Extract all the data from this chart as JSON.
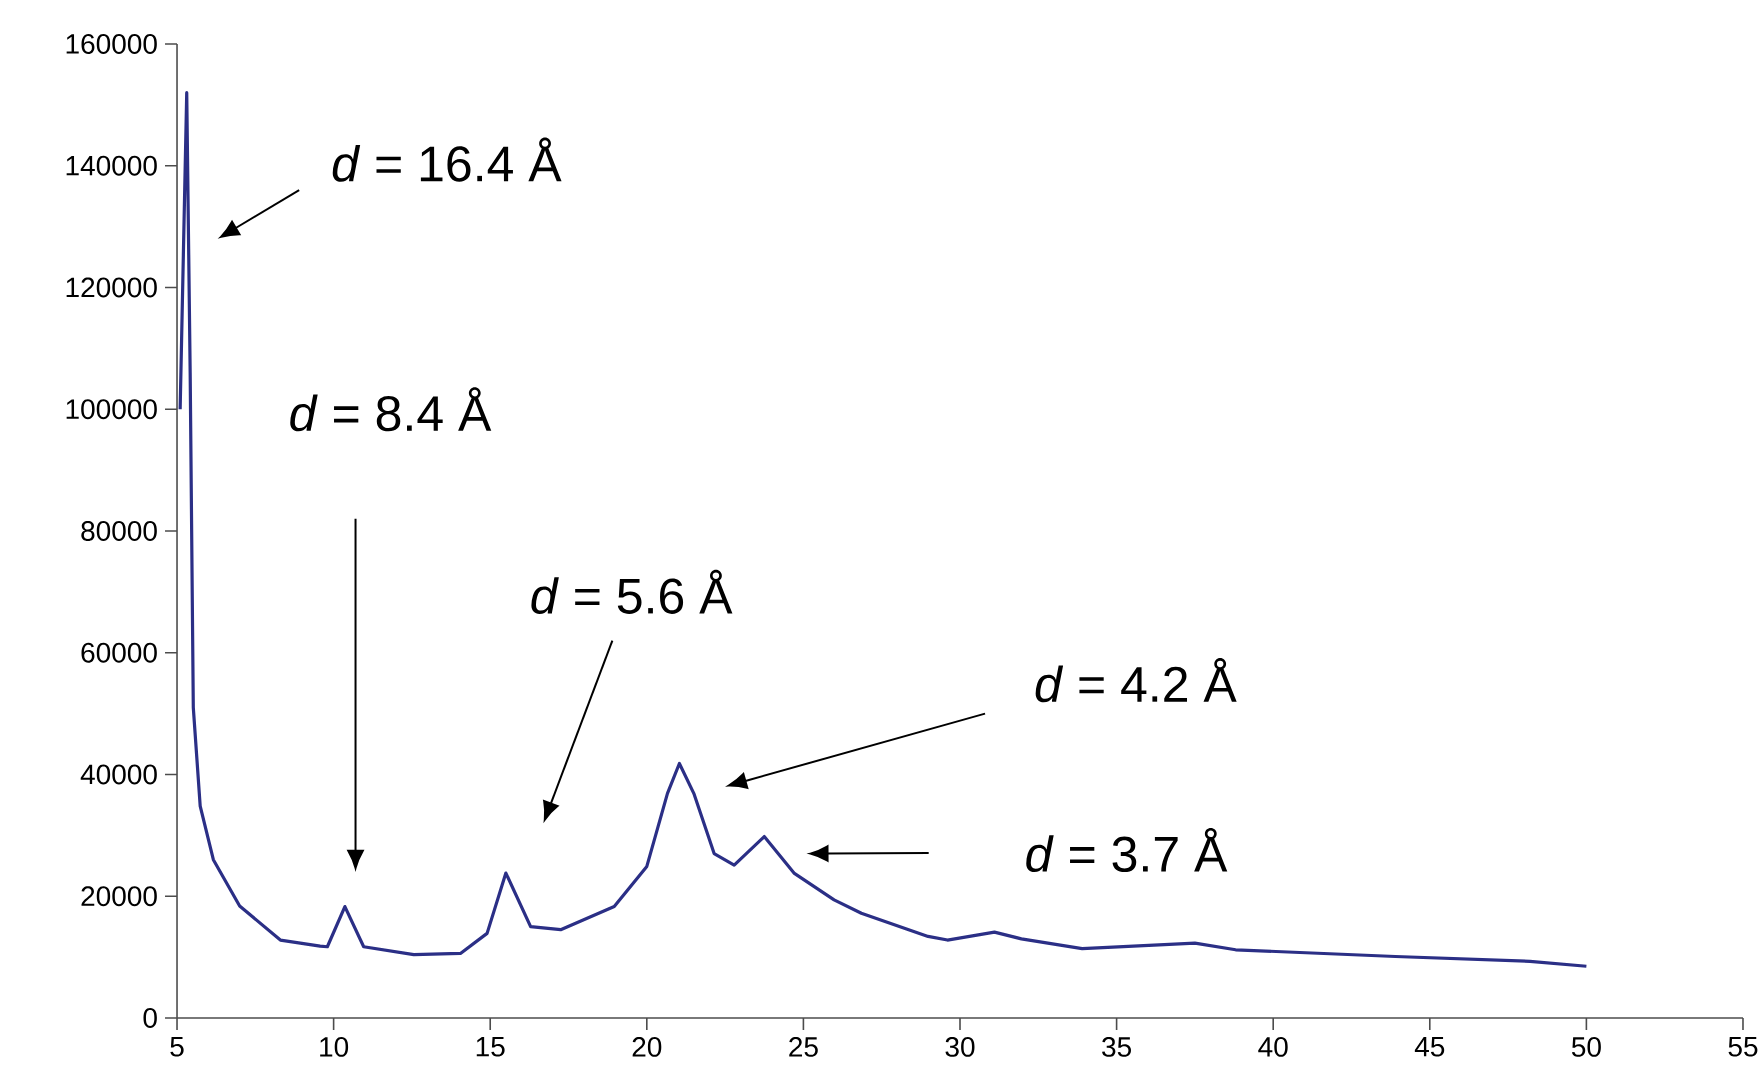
{
  "chart_data": {
    "type": "line",
    "xlim": [
      5,
      55
    ],
    "ylim": [
      0,
      160000
    ],
    "xticks": [
      5,
      10,
      15,
      20,
      25,
      30,
      35,
      40,
      45,
      50,
      55
    ],
    "yticks": [
      0,
      20000,
      40000,
      60000,
      80000,
      100000,
      120000,
      140000,
      160000
    ],
    "grid": false,
    "marker": "none",
    "line_style": "solid",
    "series": [
      {
        "color": "#2b2f86",
        "x": [
          5.1,
          5.31,
          5.42,
          5.52,
          5.74,
          6.16,
          7.0,
          8.3,
          9.57,
          9.8,
          10.36,
          10.96,
          12.56,
          14.05,
          14.9,
          15.5,
          16.29,
          17.25,
          18.96,
          20.0,
          20.66,
          21.04,
          21.5,
          22.15,
          22.79,
          23.75,
          24.7,
          25.98,
          26.85,
          28.98,
          29.6,
          31.1,
          31.96,
          33.9,
          37.5,
          38.8,
          43.9,
          48.2,
          50.0
        ],
        "values": [
          100000,
          152000,
          106000,
          51000,
          34800,
          26000,
          18400,
          12800,
          11800,
          11700,
          18300,
          11700,
          10400,
          10600,
          13900,
          23800,
          15000,
          14500,
          18300,
          24900,
          36900,
          41800,
          36900,
          27000,
          25100,
          29800,
          23800,
          19400,
          17200,
          13400,
          12800,
          14100,
          13000,
          11400,
          12300,
          11200,
          10100,
          9300,
          8500
        ]
      }
    ],
    "annotations": [
      "*d* = 16.4 Å",
      "*d* = 8.4 Å",
      "*d* = 5.6 Å",
      "*d* = 4.2 Å",
      "*d* = 3.7 Å"
    ]
  }
}
